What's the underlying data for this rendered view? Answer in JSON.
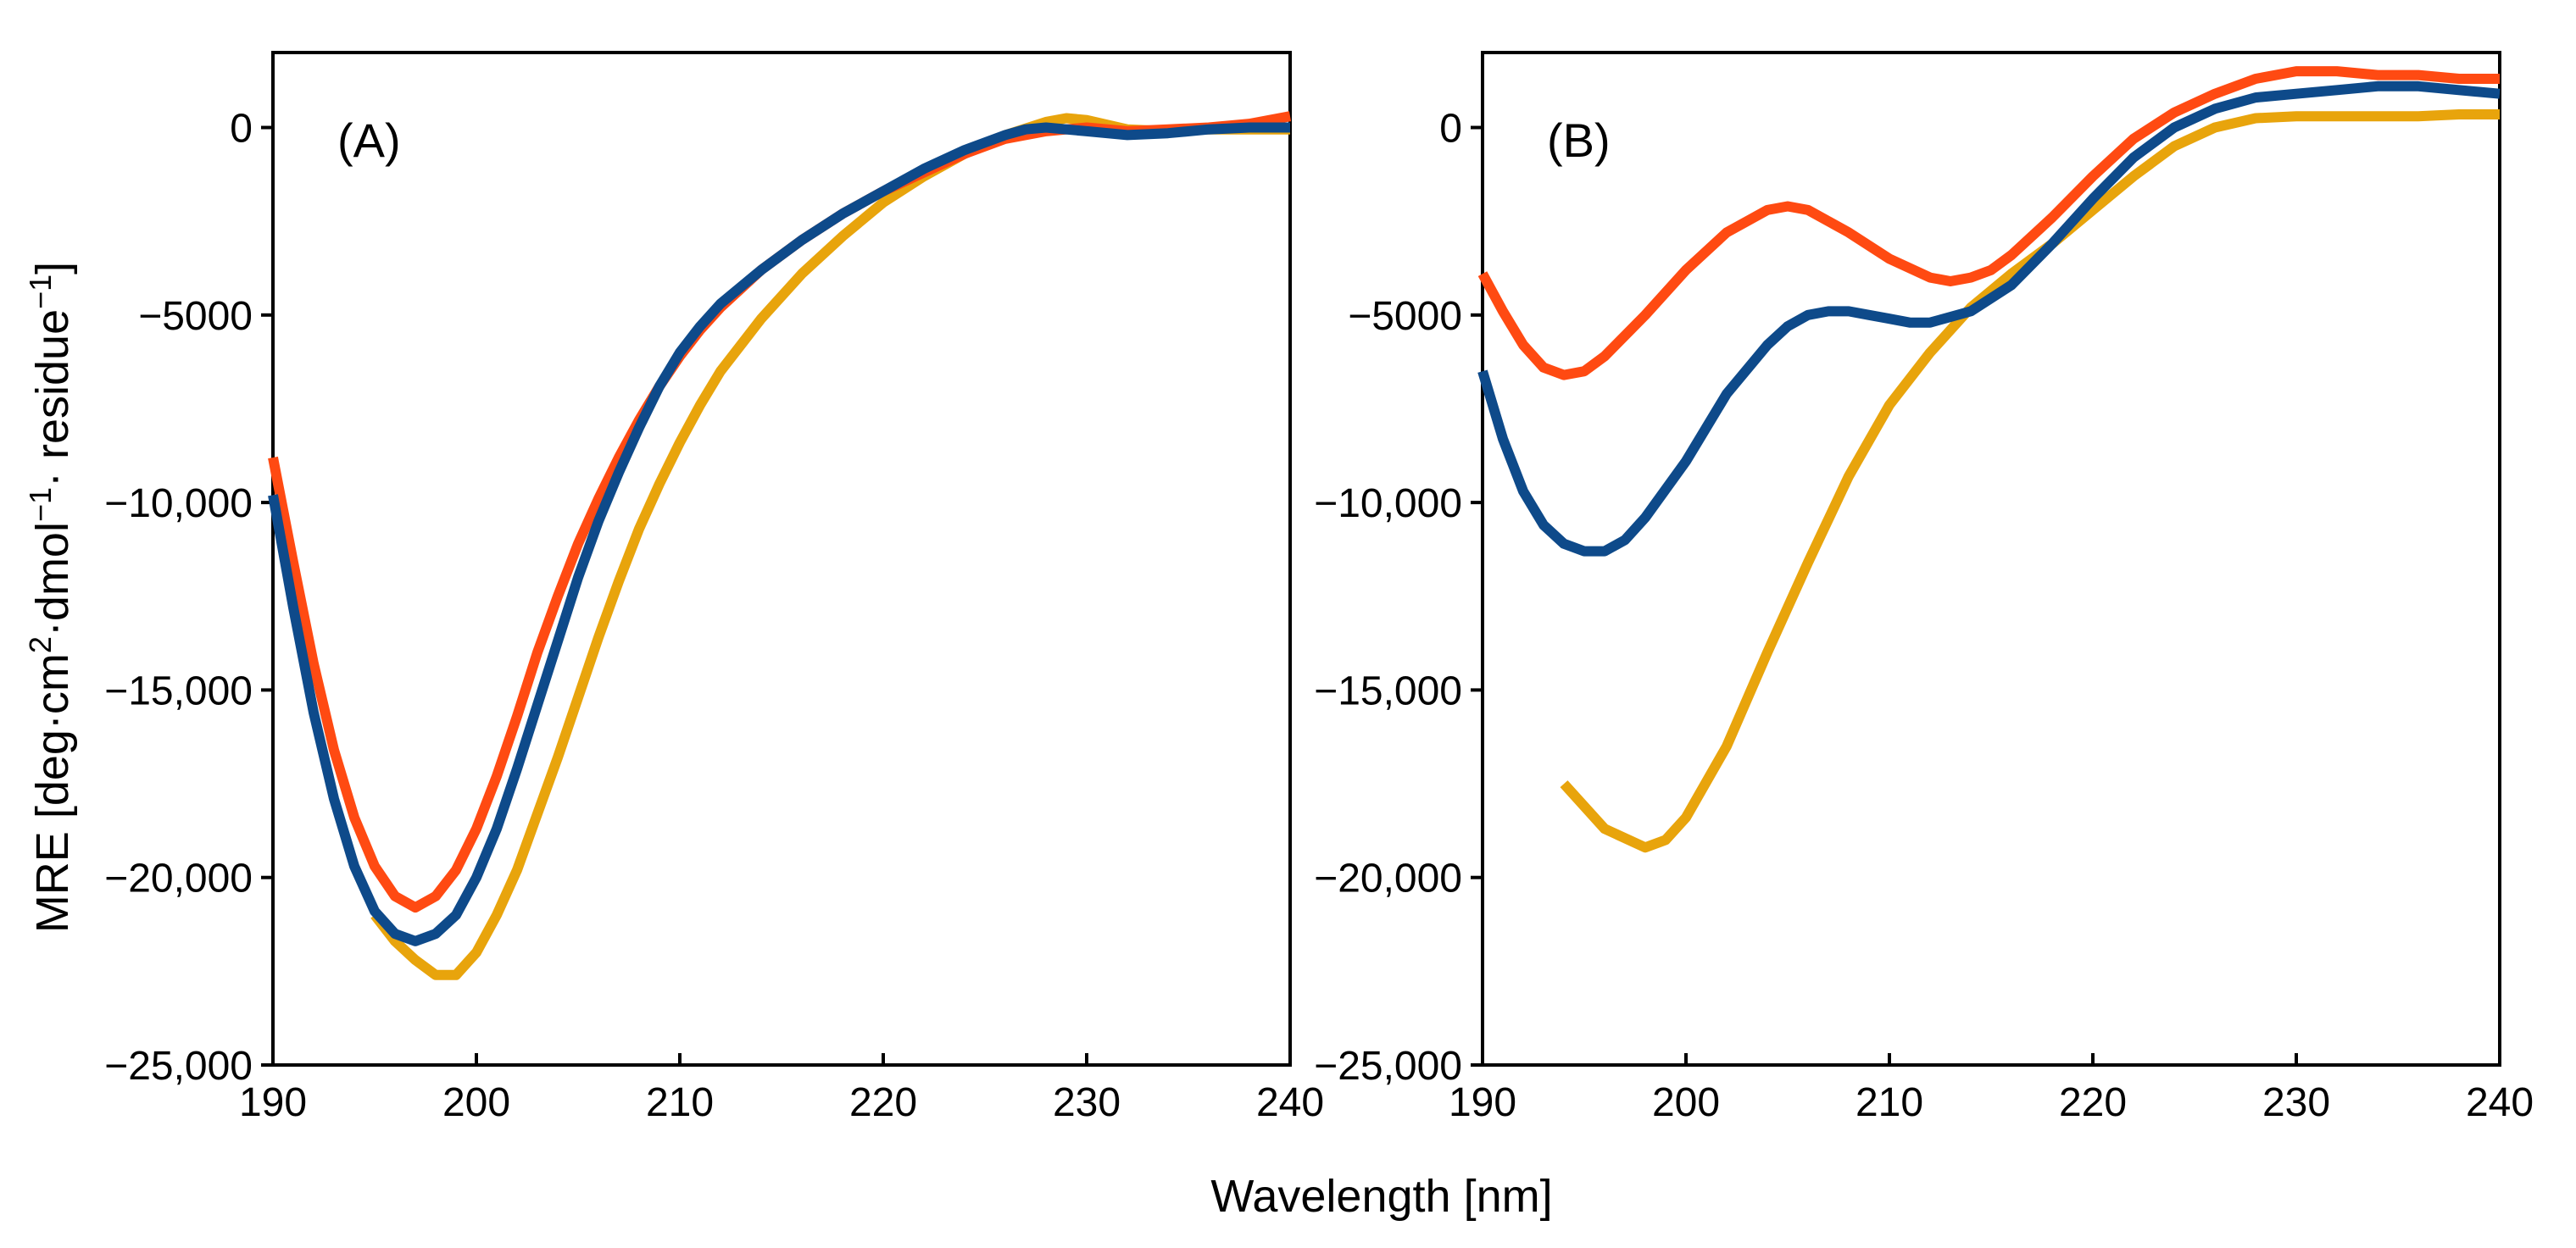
{
  "shared": {
    "xlabel": "Wavelength [nm]",
    "ylabel_parts": [
      "MRE [deg·cm",
      "2",
      "·dmol",
      "−1",
      "· residue",
      "−1",
      "]"
    ],
    "series_colors": {
      "red": "#FF4A12",
      "blue": "#0E4A8A",
      "orange": "#E8A40C"
    }
  },
  "chart_data": [
    {
      "type": "line",
      "panel_label": "(A)",
      "xlim": [
        190,
        240
      ],
      "ylim": [
        -25000,
        2000
      ],
      "xticks": [
        190,
        200,
        210,
        220,
        230,
        240
      ],
      "xtick_labels": [
        "190",
        "200",
        "210",
        "220",
        "230",
        "240"
      ],
      "yticks": [
        0,
        -5000,
        -10000,
        -15000,
        -20000,
        -25000
      ],
      "ytick_labels": [
        "0",
        "−5000",
        "−10,000",
        "−15,000",
        "−20,000",
        "−25,000"
      ],
      "xlabel": "Wavelength [nm]",
      "series": [
        {
          "name": "orange",
          "color": "#E8A40C",
          "x": [
            195,
            196,
            197,
            198,
            199,
            200,
            201,
            202,
            203,
            204,
            205,
            206,
            207,
            208,
            209,
            210,
            211,
            212,
            214,
            216,
            218,
            220,
            222,
            224,
            226,
            228,
            229,
            230,
            232,
            234,
            236,
            238,
            240
          ],
          "y": [
            -21000,
            -21700,
            -22200,
            -22600,
            -22600,
            -22000,
            -21000,
            -19800,
            -18300,
            -16800,
            -15200,
            -13600,
            -12100,
            -10700,
            -9500,
            -8400,
            -7400,
            -6500,
            -5100,
            -3900,
            -2900,
            -2000,
            -1300,
            -700,
            -200,
            150,
            250,
            200,
            -50,
            -100,
            -50,
            -50,
            -50
          ]
        },
        {
          "name": "red",
          "color": "#FF4A12",
          "x": [
            190,
            191,
            192,
            193,
            194,
            195,
            196,
            197,
            198,
            199,
            200,
            201,
            202,
            203,
            204,
            205,
            206,
            207,
            208,
            209,
            210,
            211,
            212,
            214,
            216,
            218,
            220,
            222,
            224,
            226,
            228,
            230,
            232,
            234,
            236,
            238,
            240
          ],
          "y": [
            -8800,
            -11600,
            -14300,
            -16600,
            -18400,
            -19700,
            -20500,
            -20800,
            -20500,
            -19800,
            -18700,
            -17300,
            -15700,
            -14000,
            -12500,
            -11100,
            -9900,
            -8800,
            -7800,
            -6900,
            -6100,
            -5400,
            -4800,
            -3800,
            -3000,
            -2300,
            -1700,
            -1200,
            -700,
            -300,
            -100,
            0,
            -100,
            -50,
            0,
            100,
            300
          ]
        },
        {
          "name": "blue",
          "color": "#0E4A8A",
          "x": [
            190,
            191,
            192,
            193,
            194,
            195,
            196,
            197,
            198,
            199,
            200,
            201,
            202,
            203,
            204,
            205,
            206,
            207,
            208,
            209,
            210,
            211,
            212,
            214,
            216,
            218,
            220,
            222,
            224,
            226,
            227,
            228,
            230,
            232,
            234,
            236,
            238,
            240
          ],
          "y": [
            -9800,
            -12800,
            -15600,
            -17900,
            -19700,
            -20900,
            -21500,
            -21700,
            -21500,
            -21000,
            -20000,
            -18700,
            -17100,
            -15400,
            -13700,
            -12000,
            -10500,
            -9200,
            -8000,
            -6900,
            -6000,
            -5300,
            -4700,
            -3800,
            -3000,
            -2300,
            -1700,
            -1100,
            -600,
            -200,
            -50,
            0,
            -100,
            -200,
            -150,
            -50,
            0,
            0
          ]
        }
      ]
    },
    {
      "type": "line",
      "panel_label": "(B)",
      "xlim": [
        190,
        240
      ],
      "ylim": [
        -25000,
        2000
      ],
      "xticks": [
        190,
        200,
        210,
        220,
        230,
        240
      ],
      "xtick_labels": [
        "190",
        "200",
        "210",
        "220",
        "230",
        "240"
      ],
      "yticks": [
        0,
        -5000,
        -10000,
        -15000,
        -20000,
        -25000
      ],
      "ytick_labels": [
        "0",
        "−5000",
        "−10,000",
        "−15,000",
        "−20,000",
        "−25,000"
      ],
      "xlabel": "Wavelength [nm]",
      "series": [
        {
          "name": "orange",
          "color": "#E8A40C",
          "x": [
            194,
            196,
            198,
            199,
            200,
            202,
            204,
            206,
            208,
            210,
            212,
            214,
            216,
            218,
            220,
            222,
            224,
            226,
            228,
            230,
            232,
            234,
            236,
            238,
            240
          ],
          "y": [
            -17500,
            -18700,
            -19200,
            -19000,
            -18400,
            -16500,
            -14000,
            -11600,
            -9300,
            -7400,
            -6000,
            -4800,
            -3900,
            -3100,
            -2200,
            -1300,
            -500,
            0,
            250,
            300,
            300,
            300,
            300,
            350,
            350
          ]
        },
        {
          "name": "red",
          "color": "#FF4A12",
          "x": [
            190,
            191,
            192,
            193,
            194,
            195,
            196,
            198,
            200,
            202,
            204,
            205,
            206,
            208,
            210,
            212,
            213,
            214,
            215,
            216,
            218,
            220,
            222,
            224,
            226,
            228,
            230,
            232,
            234,
            236,
            238,
            240
          ],
          "y": [
            -3900,
            -4900,
            -5800,
            -6400,
            -6600,
            -6500,
            -6100,
            -5000,
            -3800,
            -2800,
            -2200,
            -2100,
            -2200,
            -2800,
            -3500,
            -4000,
            -4100,
            -4000,
            -3800,
            -3400,
            -2400,
            -1300,
            -300,
            400,
            900,
            1300,
            1500,
            1500,
            1400,
            1400,
            1300,
            1300
          ]
        },
        {
          "name": "blue",
          "color": "#0E4A8A",
          "x": [
            190,
            191,
            192,
            193,
            194,
            195,
            196,
            197,
            198,
            200,
            202,
            204,
            205,
            206,
            207,
            208,
            209,
            210,
            211,
            212,
            214,
            216,
            218,
            220,
            222,
            224,
            226,
            228,
            230,
            232,
            234,
            236,
            238,
            240
          ],
          "y": [
            -6500,
            -8300,
            -9700,
            -10600,
            -11100,
            -11300,
            -11300,
            -11000,
            -10400,
            -8900,
            -7100,
            -5800,
            -5300,
            -5000,
            -4900,
            -4900,
            -5000,
            -5100,
            -5200,
            -5200,
            -4900,
            -4200,
            -3100,
            -1900,
            -800,
            0,
            500,
            800,
            900,
            1000,
            1100,
            1100,
            1000,
            900
          ]
        }
      ]
    }
  ]
}
